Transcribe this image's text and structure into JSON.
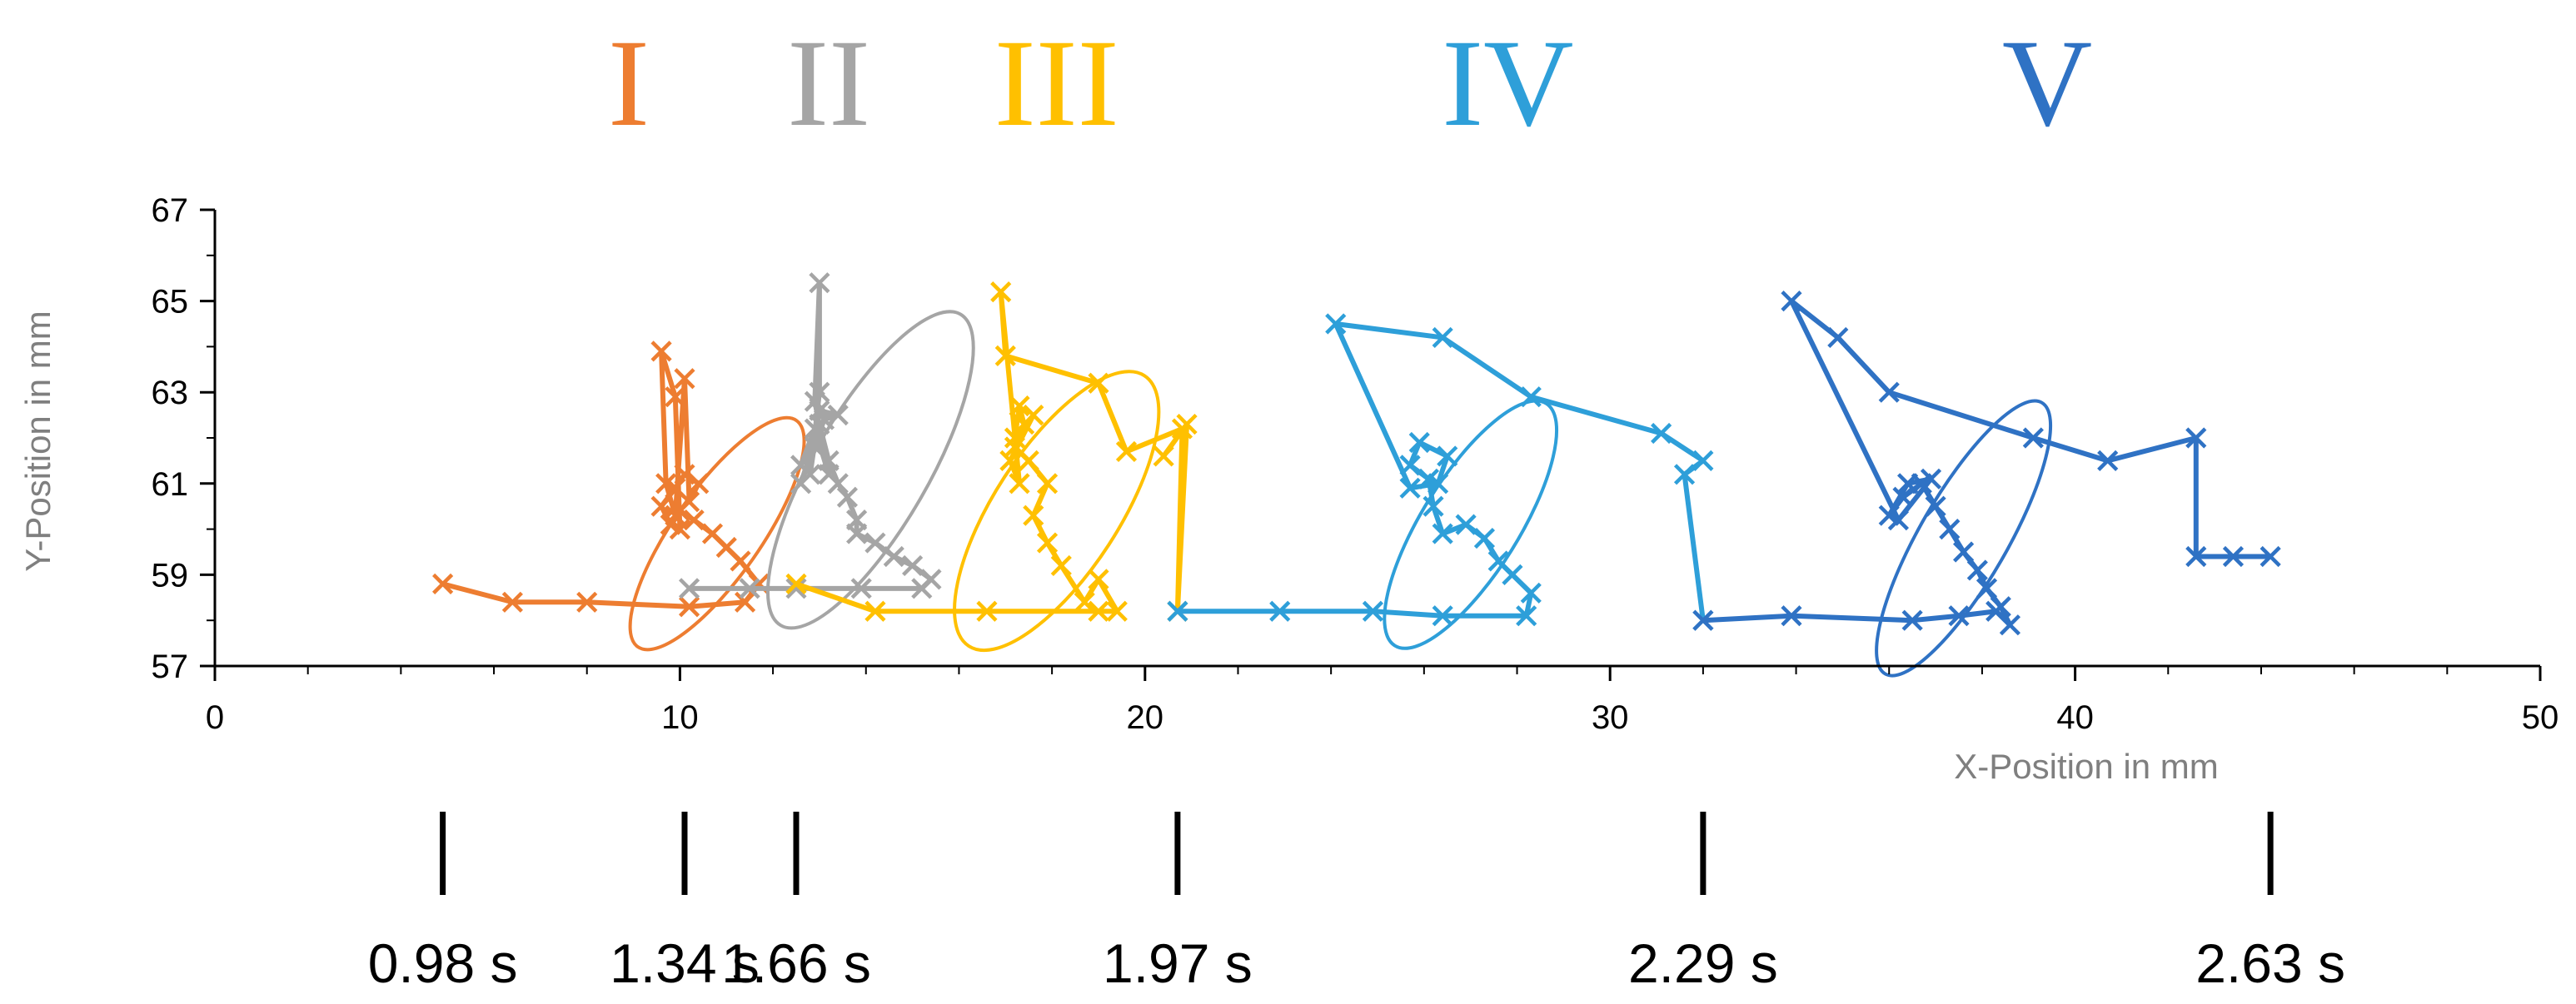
{
  "chart_data": {
    "type": "scatter",
    "xlabel": "X-Position in mm",
    "ylabel": "Y-Position in mm",
    "xlim": [
      0,
      50
    ],
    "ylim": [
      57,
      67
    ],
    "xticks": [
      0,
      10,
      20,
      30,
      40,
      50
    ],
    "yticks": [
      57,
      59,
      61,
      63,
      65,
      67
    ],
    "grid": false,
    "series": [
      {
        "name": "I",
        "color": "#ED7D31",
        "points": [
          [
            4.9,
            58.8
          ],
          [
            6.4,
            58.4
          ],
          [
            8.0,
            58.4
          ],
          [
            10.2,
            58.3
          ],
          [
            11.4,
            58.4
          ],
          [
            11.7,
            58.8
          ],
          [
            11.3,
            59.3
          ],
          [
            11.0,
            59.6
          ],
          [
            10.7,
            59.9
          ],
          [
            10.3,
            60.2
          ],
          [
            10.0,
            60.4
          ],
          [
            9.8,
            60.1
          ],
          [
            9.6,
            60.5
          ],
          [
            9.9,
            60.9
          ],
          [
            10.1,
            61.2
          ],
          [
            10.4,
            61.0
          ],
          [
            10.2,
            60.6
          ],
          [
            10.1,
            63.3
          ],
          [
            9.9,
            60.3
          ],
          [
            9.7,
            61.0
          ],
          [
            9.6,
            63.9
          ],
          [
            9.9,
            62.9
          ],
          [
            10.0,
            60.0
          ]
        ],
        "ellipse": {
          "cx": 10.8,
          "cy": 59.9,
          "rx": 3.0,
          "ry": 0.95,
          "angle_deg": -55
        }
      },
      {
        "name": "II",
        "color": "#A5A5A5",
        "points": [
          [
            10.2,
            58.7
          ],
          [
            11.5,
            58.7
          ],
          [
            12.5,
            58.7
          ],
          [
            13.9,
            58.7
          ],
          [
            15.2,
            58.7
          ],
          [
            15.4,
            58.9
          ],
          [
            15.0,
            59.2
          ],
          [
            14.6,
            59.4
          ],
          [
            14.2,
            59.7
          ],
          [
            13.8,
            59.9
          ],
          [
            13.8,
            60.2
          ],
          [
            13.6,
            60.7
          ],
          [
            13.4,
            61.0
          ],
          [
            13.2,
            61.5
          ],
          [
            13.0,
            62.3
          ],
          [
            12.6,
            61.0
          ],
          [
            12.9,
            61.8
          ],
          [
            13.1,
            62.4
          ],
          [
            13.4,
            62.5
          ],
          [
            13.0,
            62.6
          ],
          [
            12.8,
            61.2
          ],
          [
            13.0,
            63.0
          ],
          [
            13.0,
            65.4
          ],
          [
            12.9,
            62.8
          ],
          [
            13.2,
            61.2
          ],
          [
            12.9,
            62.2
          ],
          [
            12.6,
            61.4
          ]
        ],
        "ellipse": {
          "cx": 14.1,
          "cy": 61.3,
          "rx": 3.9,
          "ry": 1.25,
          "angle_deg": -60
        }
      },
      {
        "name": "III",
        "color": "#FFC000",
        "points": [
          [
            12.5,
            58.8
          ],
          [
            14.2,
            58.2
          ],
          [
            16.6,
            58.2
          ],
          [
            19.0,
            58.2
          ],
          [
            19.4,
            58.2
          ],
          [
            19.0,
            58.9
          ],
          [
            18.7,
            58.4
          ],
          [
            18.2,
            59.2
          ],
          [
            17.9,
            59.7
          ],
          [
            17.6,
            60.3
          ],
          [
            17.9,
            61.0
          ],
          [
            17.5,
            61.5
          ],
          [
            17.2,
            61.8
          ],
          [
            17.4,
            62.3
          ],
          [
            17.3,
            62.7
          ],
          [
            17.2,
            62.0
          ],
          [
            17.6,
            62.5
          ],
          [
            17.1,
            61.5
          ],
          [
            17.3,
            61.0
          ],
          [
            16.9,
            65.2
          ],
          [
            17.0,
            63.8
          ],
          [
            19.0,
            63.2
          ],
          [
            19.6,
            61.7
          ],
          [
            20.8,
            62.2
          ],
          [
            20.7,
            58.2
          ],
          [
            20.9,
            62.3
          ],
          [
            20.4,
            61.6
          ]
        ],
        "ellipse": {
          "cx": 18.1,
          "cy": 60.4,
          "rx": 3.5,
          "ry": 1.35,
          "angle_deg": -57
        }
      },
      {
        "name": "IV",
        "color": "#2E9FD9",
        "points": [
          [
            20.7,
            58.2
          ],
          [
            22.9,
            58.2
          ],
          [
            24.9,
            58.2
          ],
          [
            26.4,
            58.1
          ],
          [
            28.2,
            58.1
          ],
          [
            28.3,
            58.6
          ],
          [
            27.9,
            59.0
          ],
          [
            27.6,
            59.3
          ],
          [
            27.3,
            59.8
          ],
          [
            26.9,
            60.1
          ],
          [
            26.4,
            59.9
          ],
          [
            26.2,
            60.5
          ],
          [
            26.1,
            61.1
          ],
          [
            25.7,
            61.4
          ],
          [
            25.9,
            61.9
          ],
          [
            26.5,
            61.6
          ],
          [
            26.3,
            61.0
          ],
          [
            25.7,
            60.9
          ],
          [
            24.1,
            64.5
          ],
          [
            26.4,
            64.2
          ],
          [
            28.3,
            62.9
          ],
          [
            31.1,
            62.1
          ],
          [
            32.0,
            61.5
          ],
          [
            31.6,
            61.2
          ],
          [
            32.0,
            58.0
          ]
        ],
        "ellipse": {
          "cx": 27.0,
          "cy": 60.1,
          "rx": 3.1,
          "ry": 1.05,
          "angle_deg": -58
        }
      },
      {
        "name": "V",
        "color": "#2F72C4",
        "points": [
          [
            32.0,
            58.0
          ],
          [
            33.9,
            58.1
          ],
          [
            36.5,
            58.0
          ],
          [
            37.5,
            58.1
          ],
          [
            38.3,
            58.2
          ],
          [
            38.6,
            57.9
          ],
          [
            38.4,
            58.3
          ],
          [
            38.1,
            58.7
          ],
          [
            37.9,
            59.1
          ],
          [
            37.6,
            59.5
          ],
          [
            37.3,
            60.0
          ],
          [
            37.0,
            60.5
          ],
          [
            36.7,
            61.0
          ],
          [
            36.3,
            60.7
          ],
          [
            36.0,
            60.3
          ],
          [
            36.4,
            61.0
          ],
          [
            36.9,
            61.1
          ],
          [
            36.2,
            60.2
          ],
          [
            33.9,
            65.0
          ],
          [
            34.9,
            64.2
          ],
          [
            36.0,
            63.0
          ],
          [
            39.1,
            62.0
          ],
          [
            40.7,
            61.5
          ],
          [
            42.6,
            62.0
          ],
          [
            42.6,
            59.4
          ],
          [
            43.4,
            59.4
          ],
          [
            44.2,
            59.4
          ]
        ],
        "ellipse": {
          "cx": 37.6,
          "cy": 59.8,
          "rx": 3.4,
          "ry": 0.95,
          "angle_deg": -60
        }
      }
    ],
    "phase_labels": [
      {
        "text": "I",
        "color": "#ED7D31",
        "x": 8.9
      },
      {
        "text": "II",
        "color": "#A5A5A5",
        "x": 13.2
      },
      {
        "text": "III",
        "color": "#FFC000",
        "x": 18.1
      },
      {
        "text": "IV",
        "color": "#2E9FD9",
        "x": 27.8
      },
      {
        "text": "V",
        "color": "#2F72C4",
        "x": 39.4
      }
    ],
    "timeline": [
      {
        "label": "0.98 s",
        "x": 4.9
      },
      {
        "label": "1.34 s",
        "x": 10.1
      },
      {
        "label": "1.66 s",
        "x": 12.5
      },
      {
        "label": "1.97 s",
        "x": 20.7
      },
      {
        "label": "2.29 s",
        "x": 32.0
      },
      {
        "label": "2.63 s",
        "x": 44.2
      }
    ]
  }
}
